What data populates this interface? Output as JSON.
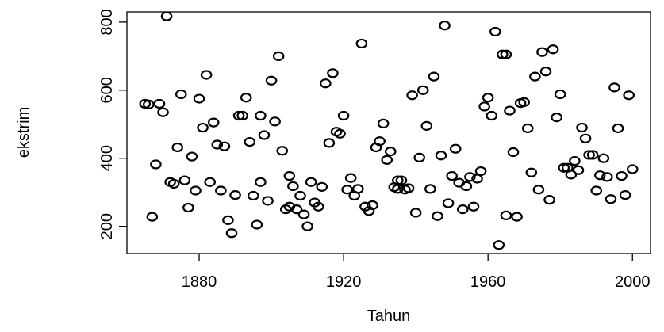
{
  "chart_data": {
    "type": "scatter",
    "title": "",
    "xlabel": "Tahun",
    "ylabel": "ekstrim",
    "xlim": [
      1860,
      2005
    ],
    "ylim": [
      120,
      830
    ],
    "xticks": [
      1880,
      1920,
      1960,
      2000
    ],
    "yticks": [
      200,
      400,
      600,
      800
    ],
    "grid": false,
    "legend": "none",
    "marker": "open-circle",
    "color": "#000000",
    "x": [
      1865,
      1866,
      1867,
      1868,
      1869,
      1870,
      1871,
      1872,
      1873,
      1874,
      1875,
      1876,
      1877,
      1878,
      1879,
      1880,
      1881,
      1882,
      1883,
      1884,
      1885,
      1886,
      1887,
      1888,
      1889,
      1890,
      1891,
      1892,
      1893,
      1894,
      1895,
      1896,
      1897,
      1898,
      1899,
      1900,
      1901,
      1902,
      1903,
      1904,
      1905,
      1906,
      1907,
      1908,
      1909,
      1910,
      1911,
      1912,
      1913,
      1914,
      1915,
      1916,
      1917,
      1918,
      1919,
      1920,
      1921,
      1922,
      1923,
      1924,
      1925,
      1926,
      1927,
      1928,
      1929,
      1930,
      1931,
      1932,
      1933,
      1934,
      1935,
      1936,
      1937,
      1938,
      1939,
      1940,
      1941,
      1942,
      1943,
      1944,
      1945,
      1946,
      1947,
      1948,
      1949,
      1950,
      1951,
      1952,
      1953,
      1954,
      1955,
      1956,
      1957,
      1958,
      1959,
      1960,
      1961,
      1962,
      1963,
      1964,
      1965,
      1966,
      1967,
      1968,
      1969,
      1970,
      1971,
      1972,
      1973,
      1974,
      1975,
      1976,
      1977,
      1978,
      1979,
      1980,
      1981,
      1982,
      1983,
      1984,
      1985,
      1986,
      1987,
      1988,
      1989,
      1990,
      1991,
      1992,
      1993,
      1994,
      1995,
      1996,
      1997,
      1998,
      1999,
      2000,
      1965,
      1897,
      1905,
      1935
    ],
    "y": [
      560,
      558,
      228,
      382,
      560,
      535,
      817,
      330,
      325,
      432,
      588,
      335,
      255,
      405,
      305,
      575,
      490,
      645,
      330,
      505,
      440,
      305,
      435,
      218,
      180,
      292,
      525,
      525,
      578,
      448,
      290,
      205,
      525,
      468,
      275,
      628,
      508,
      700,
      422,
      250,
      348,
      318,
      250,
      290,
      235,
      200,
      330,
      270,
      258,
      316,
      620,
      445,
      650,
      478,
      472,
      525,
      308,
      342,
      290,
      310,
      737,
      258,
      245,
      262,
      432,
      450,
      502,
      395,
      420,
      315,
      335,
      335,
      308,
      312,
      585,
      240,
      402,
      600,
      495,
      310,
      640,
      230,
      408,
      790,
      268,
      348,
      428,
      328,
      250,
      318,
      345,
      258,
      340,
      362,
      552,
      578,
      525,
      772,
      145,
      705,
      232,
      540,
      418,
      228,
      562,
      565,
      488,
      358,
      640,
      308,
      712,
      655,
      278,
      720,
      520,
      588,
      372,
      372,
      352,
      392,
      365,
      490,
      458,
      410,
      410,
      305,
      350,
      400,
      345,
      280,
      608,
      488,
      348,
      292,
      585,
      368,
      705,
      330,
      258,
      310
    ]
  }
}
